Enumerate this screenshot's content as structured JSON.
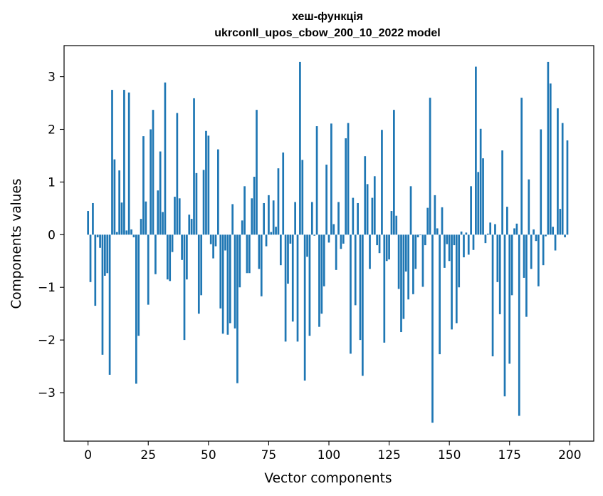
{
  "chart_data": {
    "type": "bar",
    "title": "хеш-функція",
    "subtitle": "ukrconll_upos_cbow_200_10_2022 model",
    "xlabel": "Vector components",
    "ylabel": "Components values",
    "xlim": [
      -9.95,
      209.95
    ],
    "ylim": [
      -3.92,
      3.59
    ],
    "xticks": [
      0,
      25,
      50,
      75,
      100,
      125,
      150,
      175,
      200
    ],
    "xtick_labels": [
      "0",
      "25",
      "50",
      "75",
      "100",
      "125",
      "150",
      "175",
      "200"
    ],
    "yticks": [
      -3,
      -2,
      -1,
      0,
      1,
      2,
      3
    ],
    "ytick_labels": [
      "−3",
      "−2",
      "−1",
      "0",
      "1",
      "2",
      "3"
    ],
    "bar_color": "#1f77b4",
    "grid": false,
    "x": [
      0,
      1,
      2,
      3,
      4,
      5,
      6,
      7,
      8,
      9,
      10,
      11,
      12,
      13,
      14,
      15,
      16,
      17,
      18,
      19,
      20,
      21,
      22,
      23,
      24,
      25,
      26,
      27,
      28,
      29,
      30,
      31,
      32,
      33,
      34,
      35,
      36,
      37,
      38,
      39,
      40,
      41,
      42,
      43,
      44,
      45,
      46,
      47,
      48,
      49,
      50,
      51,
      52,
      53,
      54,
      55,
      56,
      57,
      58,
      59,
      60,
      61,
      62,
      63,
      64,
      65,
      66,
      67,
      68,
      69,
      70,
      71,
      72,
      73,
      74,
      75,
      76,
      77,
      78,
      79,
      80,
      81,
      82,
      83,
      84,
      85,
      86,
      87,
      88,
      89,
      90,
      91,
      92,
      93,
      94,
      95,
      96,
      97,
      98,
      99,
      100,
      101,
      102,
      103,
      104,
      105,
      106,
      107,
      108,
      109,
      110,
      111,
      112,
      113,
      114,
      115,
      116,
      117,
      118,
      119,
      120,
      121,
      122,
      123,
      124,
      125,
      126,
      127,
      128,
      129,
      130,
      131,
      132,
      133,
      134,
      135,
      136,
      137,
      138,
      139,
      140,
      141,
      142,
      143,
      144,
      145,
      146,
      147,
      148,
      149,
      150,
      151,
      152,
      153,
      154,
      155,
      156,
      157,
      158,
      159,
      160,
      161,
      162,
      163,
      164,
      165,
      166,
      167,
      168,
      169,
      170,
      171,
      172,
      173,
      174,
      175,
      176,
      177,
      178,
      179,
      180,
      181,
      182,
      183,
      184,
      185,
      186,
      187,
      188,
      189,
      190,
      191,
      192,
      193,
      194,
      195,
      196,
      197,
      198,
      199
    ],
    "values": [
      0.45,
      -0.9,
      0.6,
      -1.35,
      -0.05,
      -0.25,
      -2.28,
      -0.78,
      -0.73,
      -2.66,
      2.75,
      1.43,
      0.05,
      1.22,
      0.61,
      2.75,
      0.08,
      2.7,
      0.1,
      -0.05,
      -2.83,
      -1.92,
      0.3,
      1.87,
      0.63,
      -1.33,
      2.0,
      2.37,
      -0.75,
      0.84,
      1.58,
      0.43,
      2.89,
      -0.85,
      -0.88,
      -0.33,
      0.72,
      2.31,
      0.69,
      -0.48,
      -2.0,
      -0.85,
      0.38,
      0.3,
      2.59,
      1.17,
      -1.5,
      -1.15,
      1.23,
      1.97,
      1.88,
      -0.18,
      -0.45,
      -0.22,
      1.62,
      -1.4,
      -1.88,
      -0.3,
      -1.9,
      -1.68,
      0.58,
      -1.78,
      -2.82,
      -1.0,
      0.27,
      0.92,
      -0.73,
      -0.73,
      0.69,
      1.1,
      2.37,
      -0.65,
      -1.17,
      0.6,
      -0.22,
      0.75,
      0.05,
      0.65,
      0.15,
      1.26,
      -0.58,
      1.56,
      -2.03,
      -0.93,
      -0.17,
      -1.65,
      0.62,
      -2.03,
      3.28,
      1.42,
      -2.77,
      -0.42,
      -1.92,
      0.62,
      -0.02,
      2.06,
      -1.75,
      -1.5,
      -0.98,
      1.33,
      -0.15,
      2.11,
      0.2,
      -0.67,
      0.62,
      -0.27,
      -0.17,
      1.83,
      2.12,
      -2.26,
      0.7,
      -1.34,
      0.6,
      -2.0,
      -2.68,
      1.49,
      0.96,
      -0.65,
      0.7,
      1.11,
      -0.2,
      -0.35,
      1.99,
      -2.05,
      -0.5,
      -0.47,
      0.45,
      2.37,
      0.36,
      -1.03,
      -1.85,
      -1.6,
      -0.7,
      -1.23,
      0.92,
      -1.13,
      -0.65,
      -0.05,
      -0.01,
      -0.99,
      -0.2,
      0.51,
      2.6,
      -3.57,
      0.75,
      0.12,
      -2.27,
      0.52,
      -0.63,
      -0.18,
      -0.5,
      -1.8,
      -0.2,
      -1.68,
      -1.0,
      0.06,
      -0.43,
      0.04,
      -0.38,
      0.92,
      -0.29,
      3.19,
      1.19,
      2.01,
      1.45,
      -0.16,
      0.02,
      0.23,
      -2.31,
      0.2,
      -0.9,
      -1.51,
      1.6,
      -3.07,
      0.53,
      -2.45,
      -1.15,
      0.12,
      0.21,
      -3.44,
      2.6,
      -0.82,
      -1.56,
      1.05,
      -0.65,
      0.1,
      -0.12,
      -0.98,
      2.0,
      -0.58,
      -0.03,
      3.28,
      2.87,
      0.15,
      -0.3,
      2.4,
      0.49,
      2.12,
      -0.05,
      1.79
    ]
  }
}
